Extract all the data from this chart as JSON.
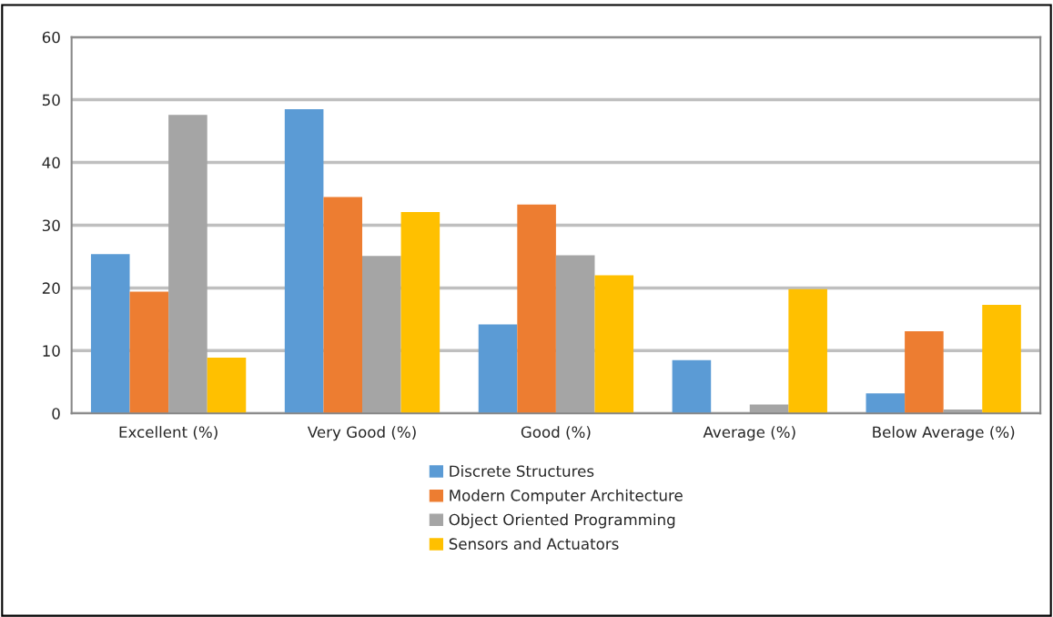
{
  "chart_data": {
    "type": "bar",
    "categories": [
      "Excellent (%)",
      "Very Good (%)",
      "Good (%)",
      "Average (%)",
      "Below Average (%)"
    ],
    "series": [
      {
        "name": "Discrete Structures",
        "color": "#5b9bd5",
        "values": [
          25.4,
          48.5,
          14.2,
          8.5,
          3.2
        ]
      },
      {
        "name": "Modern Computer Architecture",
        "color": "#ed7d31",
        "values": [
          19.4,
          34.5,
          33.3,
          null,
          13.1
        ]
      },
      {
        "name": "Object Oriented Programming",
        "color": "#a5a5a5",
        "values": [
          47.6,
          25.1,
          25.2,
          1.4,
          0.6
        ]
      },
      {
        "name": "Sensors and Actuators",
        "color": "#ffc000",
        "values": [
          8.9,
          32.1,
          22.0,
          19.8,
          17.3
        ]
      }
    ],
    "ylim": [
      0,
      60
    ],
    "yticks": [
      0,
      10,
      20,
      30,
      40,
      50,
      60
    ],
    "grid": "y",
    "legend": "bottom"
  }
}
